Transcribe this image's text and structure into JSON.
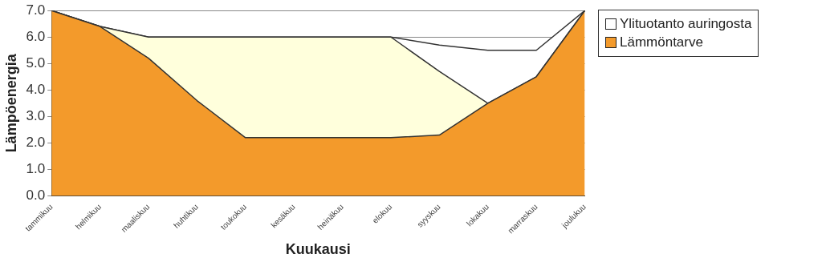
{
  "chart_data": {
    "type": "area",
    "stacked": true,
    "ylabel": "Lämpöenergia",
    "xlabel": "Kuukausi",
    "categories": [
      "tammikuu",
      "helmikuu",
      "maaliskuu",
      "huhtikuu",
      "toukokuu",
      "kesäkuu",
      "heinäkuu",
      "elokuu",
      "syyskuu",
      "lokakuu",
      "marraskuu",
      "joulukuu"
    ],
    "series": [
      {
        "name": "Lämmöntarve",
        "color": "#f39a2b",
        "values": [
          7.0,
          6.4,
          5.2,
          3.6,
          2.2,
          2.2,
          2.2,
          2.2,
          2.3,
          3.5,
          4.5,
          7.0
        ]
      },
      {
        "color": "#ffffdc",
        "values": [
          0,
          0,
          0.8,
          2.4,
          3.8,
          3.8,
          3.8,
          3.8,
          2.4,
          0,
          0,
          0
        ]
      },
      {
        "name": "Ylituotanto auringosta",
        "color": "#ffffff",
        "values": [
          0,
          0,
          0,
          0,
          0,
          0,
          0,
          0,
          1.0,
          2.0,
          1.0,
          0
        ]
      }
    ],
    "ylim": [
      0,
      7
    ],
    "yticks": [
      {
        "value": 0,
        "label": "0.0"
      },
      {
        "value": 1,
        "label": "1.0"
      },
      {
        "value": 2,
        "label": "2.0"
      },
      {
        "value": 3,
        "label": "3.0"
      },
      {
        "value": 4,
        "label": "4.0"
      },
      {
        "value": 5,
        "label": "5.0"
      },
      {
        "value": 6,
        "label": "6.0"
      },
      {
        "value": 7,
        "label": "7.0"
      }
    ],
    "grid": "y",
    "legend": "right"
  }
}
